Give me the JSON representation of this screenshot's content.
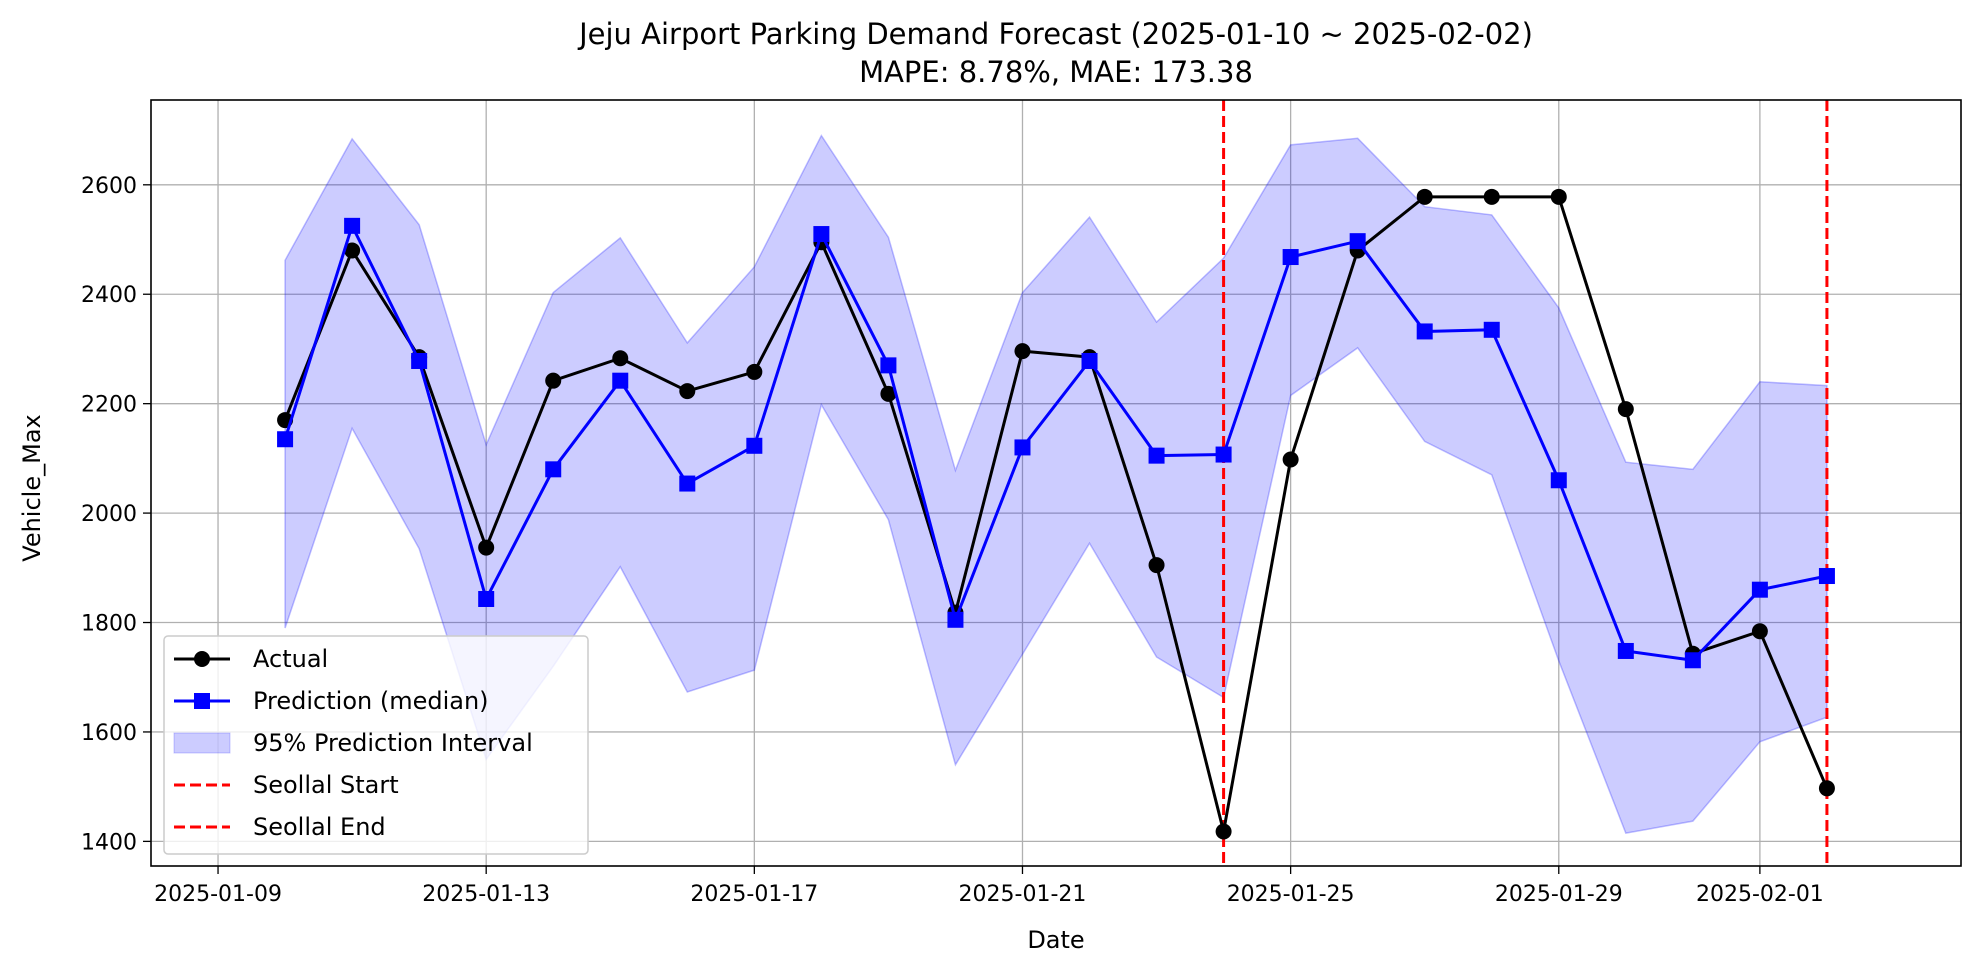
{
  "chart_data": {
    "type": "line",
    "title": "Jeju Airport Parking Demand Forecast (2025-01-10 ~ 2025-02-02)",
    "subtitle": "MAPE: 8.78%, MAE: 173.38",
    "xlabel": "Date",
    "ylabel": "Vehicle_Max",
    "ylim": [
      1355,
      2755
    ],
    "xlim": [
      "2025-01-08",
      "2025-02-04"
    ],
    "x_ticks": [
      "2025-01-09",
      "2025-01-13",
      "2025-01-17",
      "2025-01-21",
      "2025-01-25",
      "2025-01-29",
      "2025-02-01"
    ],
    "y_ticks": [
      1400,
      1600,
      1800,
      2000,
      2200,
      2400,
      2600
    ],
    "grid": true,
    "legend_position": "lower-left",
    "x": [
      "2025-01-10",
      "2025-01-11",
      "2025-01-12",
      "2025-01-13",
      "2025-01-14",
      "2025-01-15",
      "2025-01-16",
      "2025-01-17",
      "2025-01-18",
      "2025-01-19",
      "2025-01-20",
      "2025-01-21",
      "2025-01-22",
      "2025-01-23",
      "2025-01-24",
      "2025-01-25",
      "2025-01-26",
      "2025-01-27",
      "2025-01-28",
      "2025-01-29",
      "2025-01-30",
      "2025-01-31",
      "2025-02-01",
      "2025-02-02"
    ],
    "series": [
      {
        "name": "Actual",
        "color": "#000000",
        "marker": "circle",
        "values": [
          2170,
          2480,
          2285,
          1937,
          2242,
          2283,
          2223,
          2258,
          2495,
          2218,
          1818,
          2296,
          2285,
          1905,
          1418,
          2098,
          2480,
          2578,
          2578,
          2578,
          2190,
          1743,
          1784,
          1497
        ]
      },
      {
        "name": "Prediction (median)",
        "color": "#0000ff",
        "marker": "square",
        "values": [
          2135,
          2525,
          2278,
          1843,
          2080,
          2242,
          2054,
          2123,
          2510,
          2270,
          1805,
          2120,
          2278,
          2105,
          2107,
          2468,
          2497,
          2332,
          2335,
          2060,
          1748,
          1731,
          1860,
          1885
        ]
      }
    ],
    "interval": {
      "name": "95% Prediction Interval",
      "color": "#0000ff",
      "upper": [
        2462,
        2684,
        2527,
        2125,
        2403,
        2503,
        2311,
        2450,
        2690,
        2504,
        2078,
        2403,
        2541,
        2349,
        2466,
        2673,
        2685,
        2560,
        2545,
        2375,
        2093,
        2080,
        2240,
        2233
      ],
      "lower": [
        1790,
        2155,
        1935,
        1550,
        1720,
        1902,
        1673,
        1713,
        2198,
        1988,
        1540,
        1742,
        1945,
        1737,
        1663,
        2215,
        2302,
        2131,
        2070,
        1730,
        1415,
        1437,
        1582,
        1627
      ]
    },
    "vlines": [
      {
        "name": "Seollal Start",
        "x": "2025-01-24",
        "color": "#ff0000"
      },
      {
        "name": "Seollal End",
        "x": "2025-02-02",
        "color": "#ff0000"
      }
    ]
  }
}
